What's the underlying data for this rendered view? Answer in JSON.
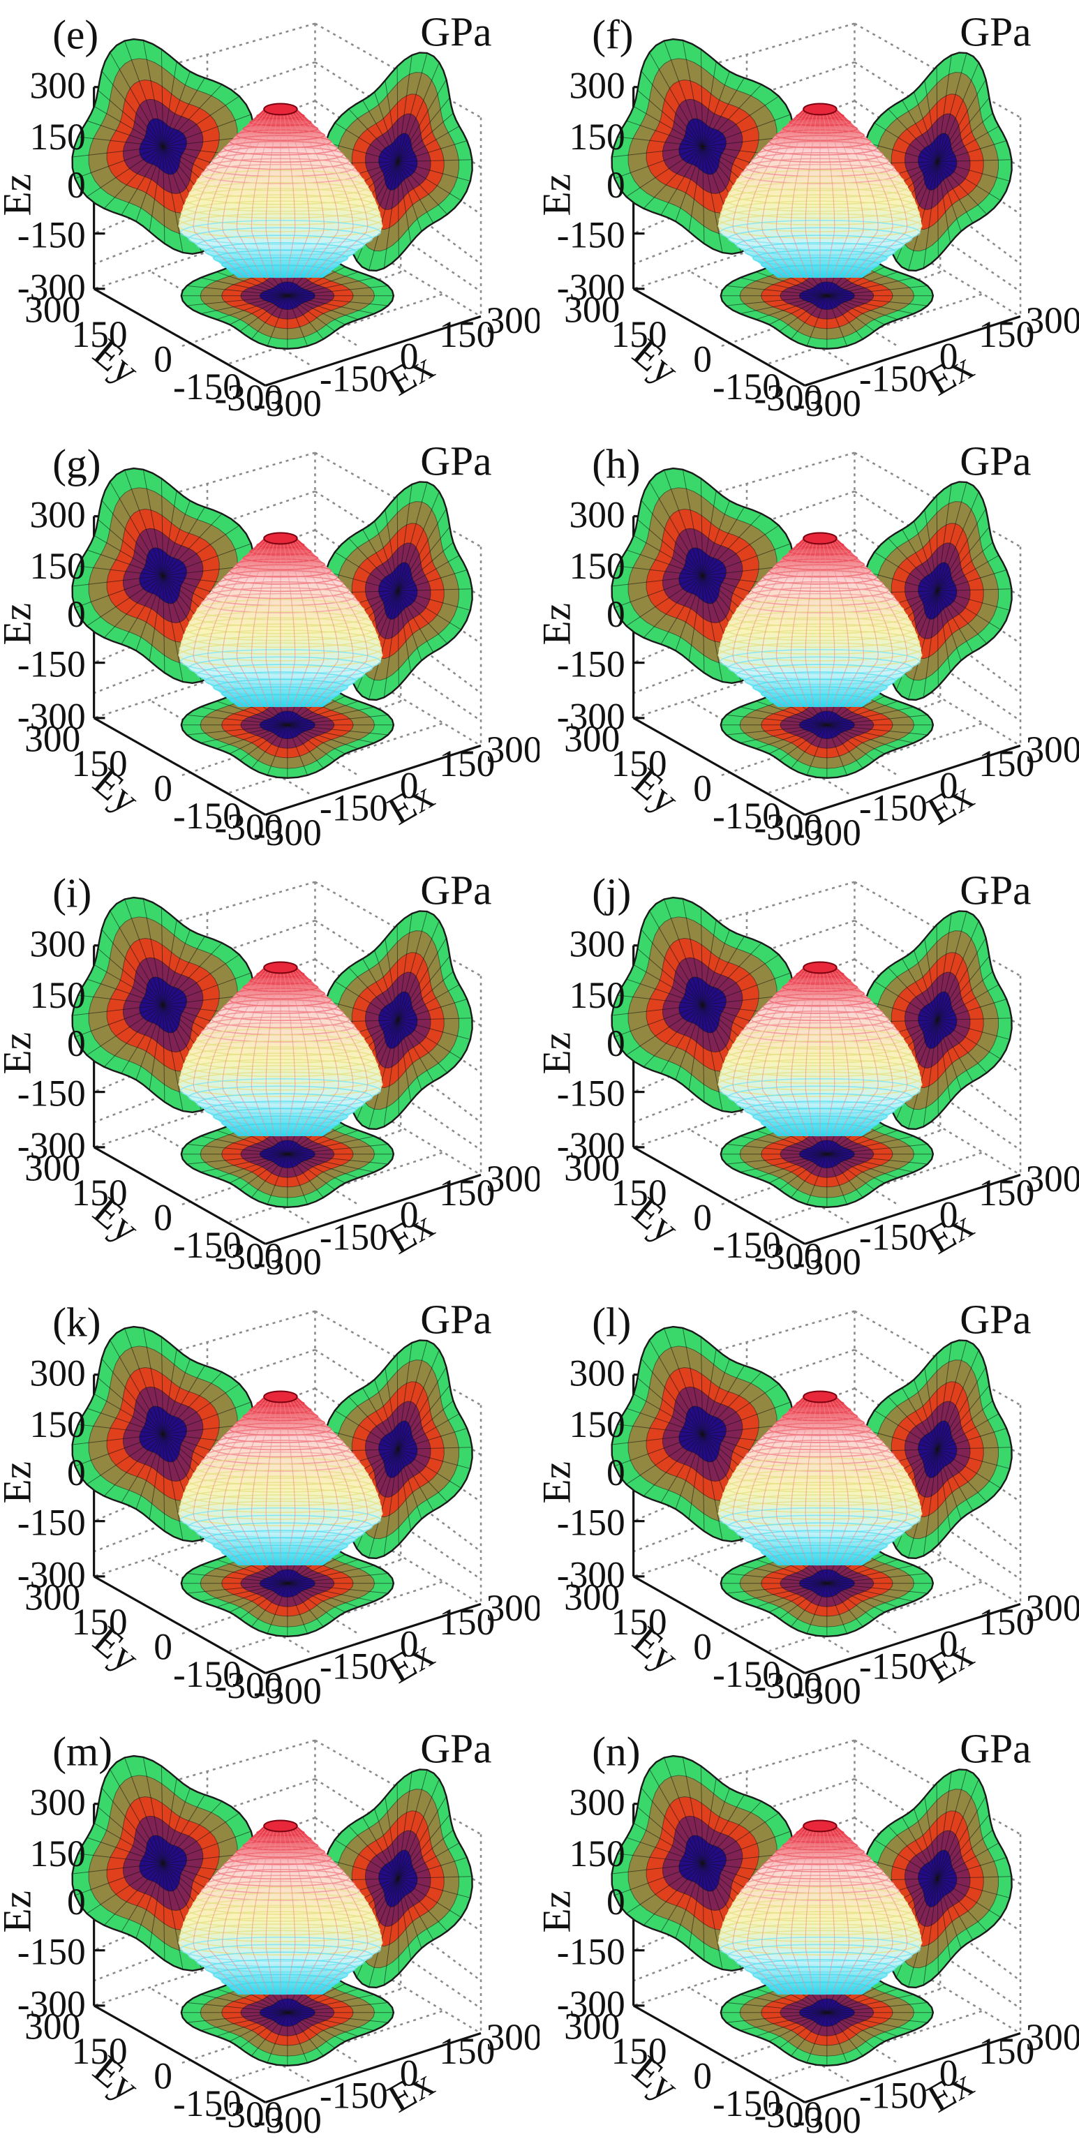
{
  "figure": {
    "unit_label": "GPa",
    "axis_labels": {
      "x": "Ex",
      "y": "Ey",
      "z": "Ez"
    },
    "ticks": {
      "z": [
        "300",
        "150",
        "0",
        "-150",
        "-300"
      ],
      "y": [
        "300",
        "150",
        "0",
        "-150",
        "-300"
      ],
      "x": [
        "-300",
        "-150",
        "0",
        "150",
        "300"
      ]
    }
  },
  "colors": {
    "surface_top": "#e8283a",
    "surface_mid": "#f9f4b8",
    "surface_bottom": "#2ad6ee",
    "projection_low": "#1a0a8a",
    "projection_mid": "#e83a1a",
    "projection_high": "#3ad86a",
    "grid": "#8a8a8a"
  },
  "chart_data": [
    {
      "type": "surface",
      "label": "(e)",
      "unit": "GPa",
      "xlabel": "Ex",
      "ylabel": "Ey",
      "zlabel": "Ez",
      "xlim": [
        -300,
        300
      ],
      "ylim": [
        -300,
        300
      ],
      "zlim": [
        -300,
        300
      ],
      "grid": true
    },
    {
      "type": "surface",
      "label": "(f)",
      "unit": "GPa",
      "xlabel": "Ex",
      "ylabel": "Ey",
      "zlabel": "Ez",
      "xlim": [
        -300,
        300
      ],
      "ylim": [
        -300,
        300
      ],
      "zlim": [
        -300,
        300
      ],
      "grid": true
    },
    {
      "type": "surface",
      "label": "(g)",
      "unit": "GPa",
      "xlabel": "Ex",
      "ylabel": "Ey",
      "zlabel": "Ez",
      "xlim": [
        -300,
        300
      ],
      "ylim": [
        -300,
        300
      ],
      "zlim": [
        -300,
        300
      ],
      "grid": true
    },
    {
      "type": "surface",
      "label": "(h)",
      "unit": "GPa",
      "xlabel": "Ex",
      "ylabel": "Ey",
      "zlabel": "Ez",
      "xlim": [
        -300,
        300
      ],
      "ylim": [
        -300,
        300
      ],
      "zlim": [
        -300,
        300
      ],
      "grid": true
    },
    {
      "type": "surface",
      "label": "(i)",
      "unit": "GPa",
      "xlabel": "Ex",
      "ylabel": "Ey",
      "zlabel": "Ez",
      "xlim": [
        -300,
        300
      ],
      "ylim": [
        -300,
        300
      ],
      "zlim": [
        -300,
        300
      ],
      "grid": true
    },
    {
      "type": "surface",
      "label": "(j)",
      "unit": "GPa",
      "xlabel": "Ex",
      "ylabel": "Ey",
      "zlabel": "Ez",
      "xlim": [
        -300,
        300
      ],
      "ylim": [
        -300,
        300
      ],
      "zlim": [
        -300,
        300
      ],
      "grid": true
    },
    {
      "type": "surface",
      "label": "(k)",
      "unit": "GPa",
      "xlabel": "Ex",
      "ylabel": "Ey",
      "zlabel": "Ez",
      "xlim": [
        -300,
        300
      ],
      "ylim": [
        -300,
        300
      ],
      "zlim": [
        -300,
        300
      ],
      "grid": true
    },
    {
      "type": "surface",
      "label": "(l)",
      "unit": "GPa",
      "xlabel": "Ex",
      "ylabel": "Ey",
      "zlabel": "Ez",
      "xlim": [
        -300,
        300
      ],
      "ylim": [
        -300,
        300
      ],
      "zlim": [
        -300,
        300
      ],
      "grid": true
    },
    {
      "type": "surface",
      "label": "(m)",
      "unit": "GPa",
      "xlabel": "Ex",
      "ylabel": "Ey",
      "zlabel": "Ez",
      "xlim": [
        -300,
        300
      ],
      "ylim": [
        -300,
        300
      ],
      "zlim": [
        -300,
        300
      ],
      "grid": true
    },
    {
      "type": "surface",
      "label": "(n)",
      "unit": "GPa",
      "xlabel": "Ex",
      "ylabel": "Ey",
      "zlabel": "Ez",
      "xlim": [
        -300,
        300
      ],
      "ylim": [
        -300,
        300
      ],
      "zlim": [
        -300,
        300
      ],
      "grid": true
    }
  ]
}
